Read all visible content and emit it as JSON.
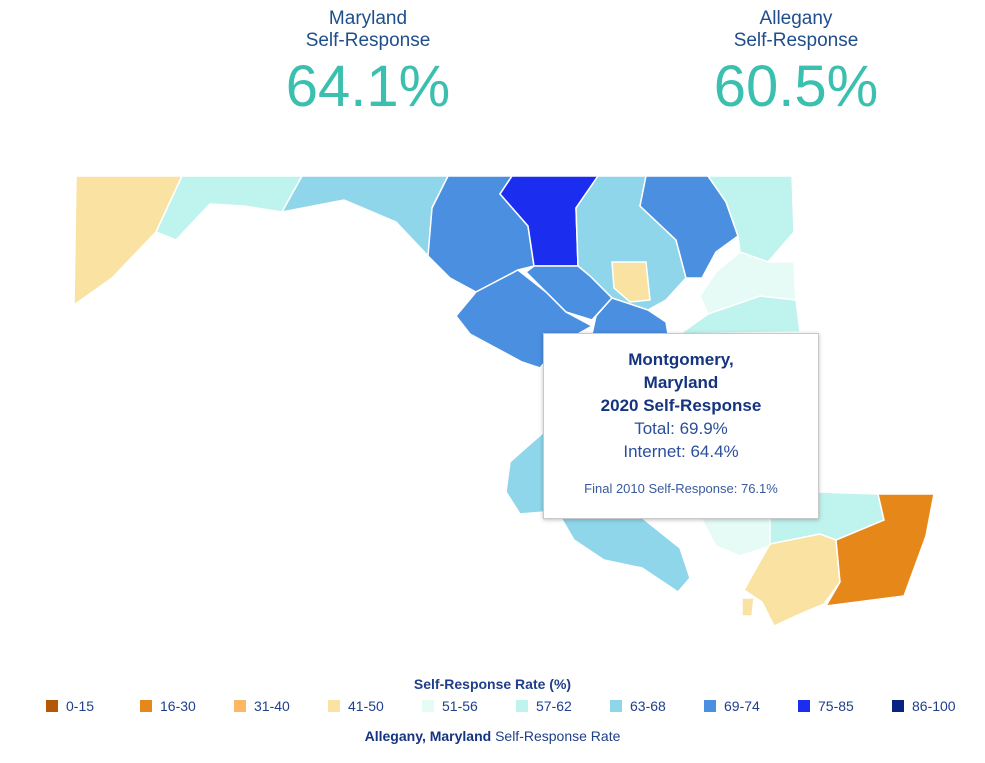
{
  "kpis": {
    "state": {
      "label_line1": "Maryland",
      "label_line2": "Self-Response",
      "value": "64.1%"
    },
    "county": {
      "label_line1": "Allegany",
      "label_line2": "Self-Response",
      "value": "60.5%"
    }
  },
  "tooltip": {
    "title_line1": "Montgomery,",
    "title_line2": "Maryland",
    "title_line3": "2020 Self-Response",
    "total": "Total: 69.9%",
    "internet": "Internet: 64.4%",
    "final": "Final 2010 Self-Response: 76.1%"
  },
  "legend": {
    "title": "Self-Response Rate (%)",
    "items": [
      {
        "label": "0-15",
        "color": "#b35806"
      },
      {
        "label": "16-30",
        "color": "#e6871a"
      },
      {
        "label": "31-40",
        "color": "#fdb863"
      },
      {
        "label": "41-50",
        "color": "#f9e2a2"
      },
      {
        "label": "51-56",
        "color": "#e6fbf6"
      },
      {
        "label": "57-62",
        "color": "#bff3ee"
      },
      {
        "label": "63-68",
        "color": "#8fd6ea"
      },
      {
        "label": "69-74",
        "color": "#4b8fe0"
      },
      {
        "label": "75-85",
        "color": "#1b2ef0"
      },
      {
        "label": "86-100",
        "color": "#0b2380"
      }
    ]
  },
  "footer": {
    "county": "Allegany, Maryland",
    "suffix": " Self-Response Rate"
  }
}
